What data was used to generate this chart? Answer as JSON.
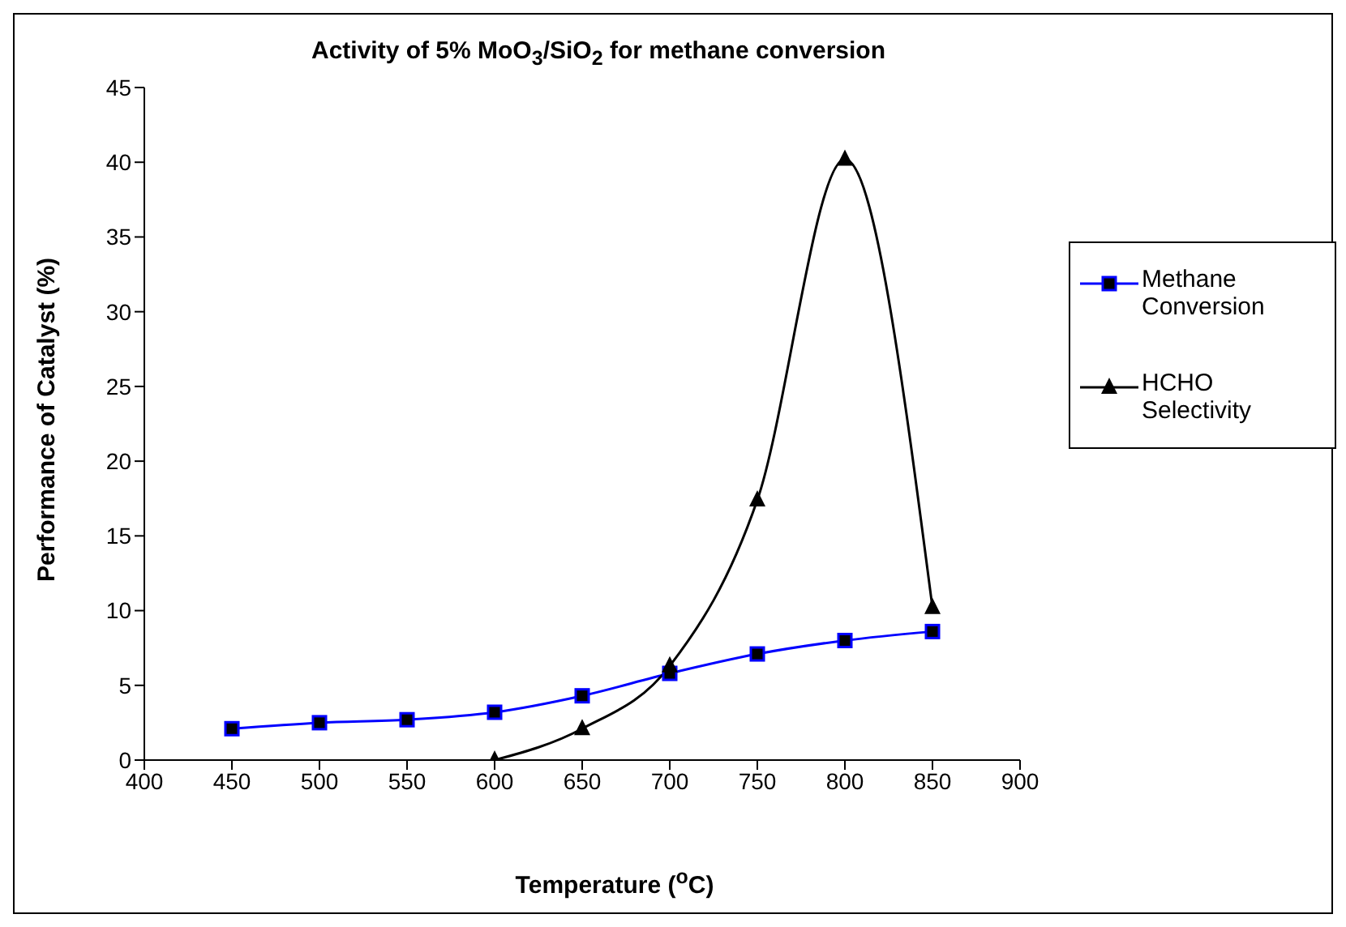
{
  "chart_data": {
    "type": "line",
    "title": "Activity of 5% MoO$_{3}$/SiO$_{2}$ for methane conversion",
    "xlabel": "Temperature ($^{o}$C)",
    "ylabel": "Performance of Catalyst (%)",
    "xlim": [
      400,
      900
    ],
    "xticks": [
      400,
      450,
      500,
      550,
      600,
      650,
      700,
      750,
      800,
      850,
      900
    ],
    "ylim": [
      0,
      45
    ],
    "yticks": [
      0,
      5,
      10,
      15,
      20,
      25,
      30,
      35,
      40,
      45
    ],
    "grid": false,
    "legend": "right",
    "series": [
      {
        "name": "Methane Conversion",
        "color": "#0000ff",
        "marker": "square",
        "x": [
          450,
          500,
          550,
          600,
          650,
          700,
          750,
          800,
          850
        ],
        "values": [
          2.1,
          2.5,
          2.7,
          3.2,
          4.3,
          5.8,
          7.1,
          8.0,
          8.6
        ]
      },
      {
        "name": "HCHO Selectivity",
        "color": "#000000",
        "marker": "triangle",
        "x": [
          600,
          650,
          700,
          750,
          800,
          850
        ],
        "values": [
          0,
          2.1,
          6.3,
          17.4,
          40.2,
          10.2
        ]
      }
    ]
  }
}
